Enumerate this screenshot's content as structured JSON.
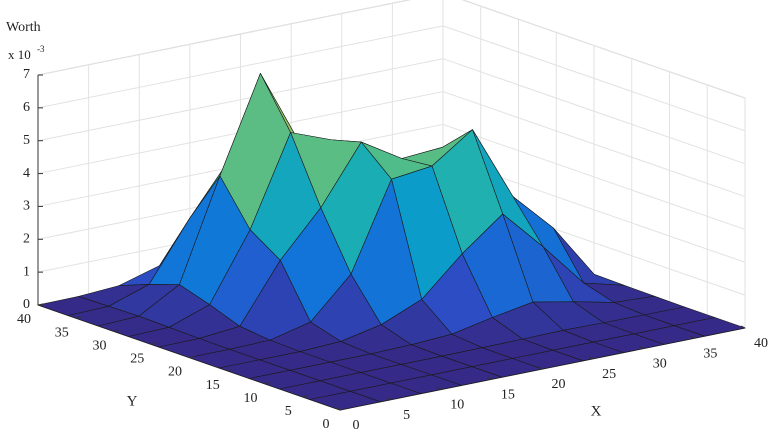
{
  "chart_data": {
    "type": "surface",
    "zlabel": "Worth",
    "zscale_label": "x 10",
    "zscale_exponent": "-3",
    "xlabel": "X",
    "ylabel": "Y",
    "x": [
      0,
      4,
      8,
      12,
      16,
      20,
      24,
      28,
      32,
      36,
      40
    ],
    "y": [
      0,
      4,
      8,
      12,
      16,
      20,
      24,
      28,
      32,
      36,
      40
    ],
    "z": [
      [
        0,
        0,
        0,
        0,
        0,
        0,
        0,
        0,
        0,
        0,
        0
      ],
      [
        0,
        0,
        0,
        0,
        0,
        0,
        0,
        0,
        0,
        0,
        0
      ],
      [
        0,
        0,
        0,
        0,
        0,
        0.01,
        0.02,
        0.04,
        0.02,
        0.01,
        0
      ],
      [
        0,
        0,
        0,
        0,
        0.03,
        0.1,
        0.36,
        0.58,
        0.34,
        0.07,
        0.01
      ],
      [
        0,
        0,
        0,
        0.06,
        0.32,
        0.84,
        1.98,
        2.94,
        1.69,
        0.34,
        0.02
      ],
      [
        0,
        0,
        0.03,
        0.33,
        1.54,
        4.18,
        4.33,
        5.19,
        2.9,
        1.69,
        0.04
      ],
      [
        0,
        0.01,
        0.13,
        1.89,
        3.24,
        4.99,
        4.24,
        4.33,
        1.72,
        0.34,
        0.02
      ],
      [
        0,
        0.03,
        0.47,
        2.5,
        5.21,
        4.74,
        2.24,
        0.9,
        0.36,
        0.07,
        0.01
      ],
      [
        0,
        0.05,
        0.76,
        3.82,
        6.69,
        4.26,
        1.07,
        0.15,
        0.03,
        0.01,
        0
      ],
      [
        0,
        0.03,
        0.45,
        2.21,
        3.78,
        2.24,
        0.47,
        0.04,
        0,
        0,
        0
      ],
      [
        0,
        0.01,
        0.09,
        0.45,
        0.76,
        0.45,
        0.09,
        0.01,
        0,
        0,
        0
      ]
    ],
    "xlim": [
      0,
      40
    ],
    "ylim": [
      0,
      40
    ],
    "zlim": [
      0,
      7
    ],
    "xticks": [
      0,
      5,
      10,
      15,
      20,
      25,
      30,
      35,
      40
    ],
    "yticks": [
      0,
      5,
      10,
      15,
      20,
      25,
      30,
      35,
      40
    ],
    "zticks": [
      0,
      1,
      2,
      3,
      4,
      5,
      6,
      7
    ],
    "grid": true,
    "colormap": [
      "#352a87",
      "#2b4fc8",
      "#1274d8",
      "#0896cf",
      "#1aaeb4",
      "#4bbc8c",
      "#98c063",
      "#d7bc4a",
      "#f5b82e"
    ],
    "edge_color": "#1a1a1a"
  }
}
